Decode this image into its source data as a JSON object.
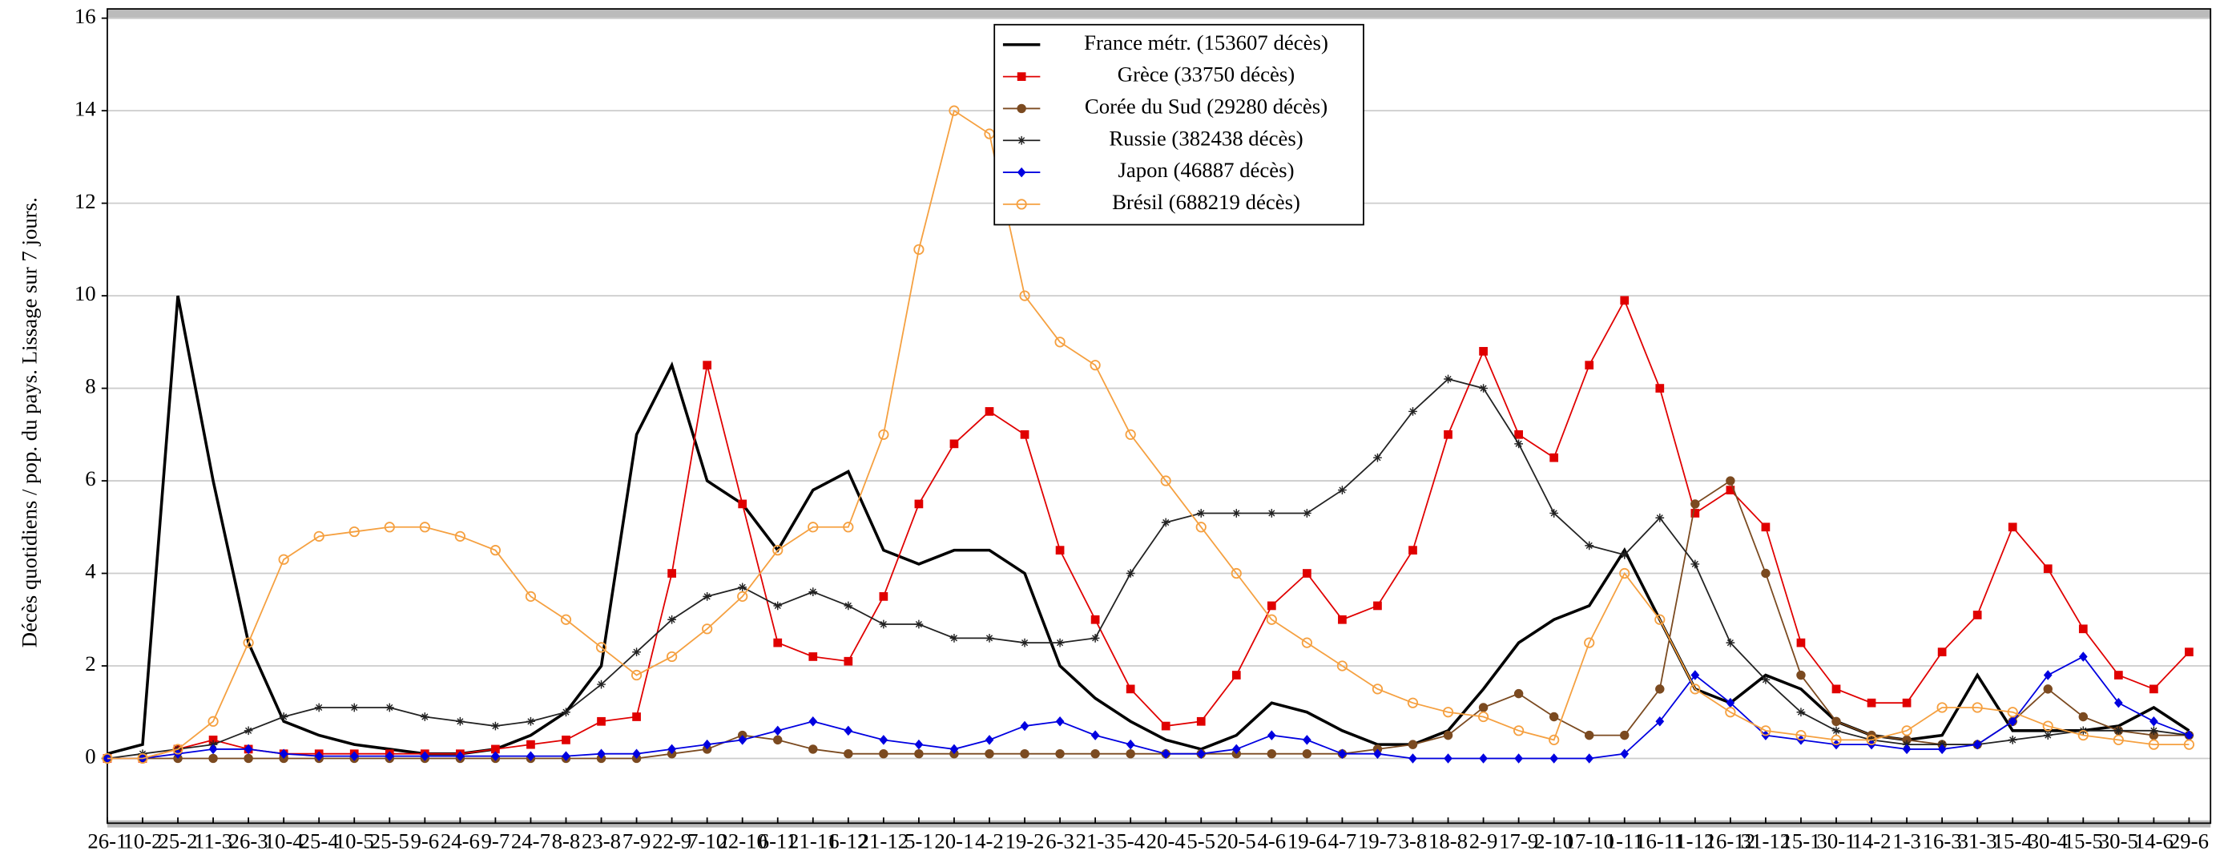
{
  "chart_data": {
    "type": "line",
    "ylabel": "Décès quotidiens / pop. du pays. Lissage sur 7 jours.",
    "categories": [
      "26-1",
      "10-2",
      "25-2",
      "11-3",
      "26-3",
      "10-4",
      "25-4",
      "10-5",
      "25-5",
      "9-6",
      "24-6",
      "9-7",
      "24-7",
      "8-8",
      "23-8",
      "7-9",
      "22-9",
      "7-10",
      "22-10",
      "6-11",
      "21-11",
      "6-12",
      "21-12",
      "5-1",
      "20-1",
      "4-2",
      "19-2",
      "6-3",
      "21-3",
      "5-4",
      "20-4",
      "5-5",
      "20-5",
      "4-6",
      "19-6",
      "4-7",
      "19-7",
      "3-8",
      "18-8",
      "2-9",
      "17-9",
      "2-10",
      "17-10",
      "1-11",
      "16-11",
      "1-12",
      "16-12",
      "31-12",
      "15-1",
      "30-1",
      "14-2",
      "1-3",
      "16-3",
      "31-3",
      "15-4",
      "30-4",
      "15-5",
      "30-5",
      "14-6",
      "29-6"
    ],
    "ylim": [
      -1.4,
      16.2
    ],
    "yticks": [
      0,
      2,
      4,
      6,
      8,
      10,
      12,
      14,
      16
    ],
    "grid": true,
    "legend": "top-center",
    "series": [
      {
        "name": "France métr. (153607 décès)",
        "color": "#000000",
        "marker": "none",
        "values": [
          0.1,
          0.3,
          10,
          6,
          2.5,
          0.8,
          0.5,
          0.3,
          0.2,
          0.1,
          0.1,
          0.2,
          0.5,
          1,
          2,
          7,
          8.5,
          6,
          5.5,
          4.5,
          5.8,
          6.2,
          4.5,
          4.2,
          4.5,
          4.5,
          4,
          2,
          1.3,
          0.8,
          0.4,
          0.2,
          0.5,
          1.2,
          1,
          0.6,
          0.3,
          0.3,
          0.6,
          1.5,
          2.5,
          3,
          3.3,
          4.5,
          3,
          1.5,
          1.2,
          1.8,
          1.5,
          0.8,
          0.5,
          0.4,
          0.5,
          1.8,
          0.6,
          0.6,
          0.6,
          0.7,
          1.1,
          0.6
        ]
      },
      {
        "name": "Grèce (33750 décès)",
        "color": "#e00000",
        "marker": "square",
        "values": [
          0,
          0,
          0.2,
          0.4,
          0.2,
          0.1,
          0.1,
          0.1,
          0.1,
          0.1,
          0.1,
          0.2,
          0.3,
          0.4,
          0.8,
          0.9,
          4,
          8.5,
          5.5,
          2.5,
          2.2,
          2.1,
          3.5,
          5.5,
          6.8,
          7.5,
          7,
          4.5,
          3,
          1.5,
          0.7,
          0.8,
          1.8,
          3.3,
          4,
          3,
          3.3,
          4.5,
          7,
          8.8,
          7,
          6.5,
          8.5,
          9.9,
          8,
          5.3,
          5.8,
          5,
          2.5,
          1.5,
          1.2,
          1.2,
          2.3,
          3.1,
          5,
          4.1,
          2.8,
          1.8,
          1.5,
          2.3
        ]
      },
      {
        "name": "Corée du Sud (29280 décès)",
        "color": "#7b4a20",
        "marker": "circle",
        "values": [
          0,
          0,
          0,
          0,
          0,
          0,
          0,
          0,
          0,
          0,
          0,
          0,
          0,
          0,
          0,
          0,
          0.1,
          0.2,
          0.5,
          0.4,
          0.2,
          0.1,
          0.1,
          0.1,
          0.1,
          0.1,
          0.1,
          0.1,
          0.1,
          0.1,
          0.1,
          0.1,
          0.1,
          0.1,
          0.1,
          0.1,
          0.2,
          0.3,
          0.5,
          1.1,
          1.4,
          0.9,
          0.5,
          0.5,
          1.5,
          5.5,
          6,
          4,
          1.8,
          0.8,
          0.5,
          0.4,
          0.3,
          0.3,
          0.8,
          1.5,
          0.9,
          0.6,
          0.5,
          0.5
        ]
      },
      {
        "name": "Russie (382438 décès)",
        "color": "#222222",
        "marker": "star",
        "values": [
          0,
          0.1,
          0.2,
          0.3,
          0.6,
          0.9,
          1.1,
          1.1,
          1.1,
          0.9,
          0.8,
          0.7,
          0.8,
          1,
          1.6,
          2.3,
          3,
          3.5,
          3.7,
          3.3,
          3.6,
          3.3,
          2.9,
          2.9,
          2.6,
          2.6,
          2.5,
          2.5,
          2.6,
          4,
          5.1,
          5.3,
          5.3,
          5.3,
          5.3,
          5.8,
          6.5,
          7.5,
          8.2,
          8,
          6.8,
          5.3,
          4.6,
          4.4,
          5.2,
          4.2,
          2.5,
          1.7,
          1,
          0.6,
          0.4,
          0.3,
          0.3,
          0.3,
          0.4,
          0.5,
          0.6,
          0.6,
          0.6,
          0.5
        ]
      },
      {
        "name": "Japon (46887 décès)",
        "color": "#0000e0",
        "marker": "diamond",
        "values": [
          0,
          0,
          0.1,
          0.2,
          0.2,
          0.1,
          0.05,
          0.05,
          0.05,
          0.05,
          0.05,
          0.05,
          0.05,
          0.05,
          0.1,
          0.1,
          0.2,
          0.3,
          0.4,
          0.6,
          0.8,
          0.6,
          0.4,
          0.3,
          0.2,
          0.4,
          0.7,
          0.8,
          0.5,
          0.3,
          0.1,
          0.1,
          0.2,
          0.5,
          0.4,
          0.1,
          0.1,
          0,
          0,
          0,
          0,
          0,
          0,
          0.1,
          0.8,
          1.8,
          1.2,
          0.5,
          0.4,
          0.3,
          0.3,
          0.2,
          0.2,
          0.3,
          0.8,
          1.8,
          2.2,
          1.2,
          0.8,
          0.5
        ]
      },
      {
        "name": "Brésil (688219 décès)",
        "color": "#f5a040",
        "marker": "ring",
        "values": [
          0,
          0,
          0.2,
          0.8,
          2.5,
          4.3,
          4.8,
          4.9,
          5,
          5,
          4.8,
          4.5,
          3.5,
          3,
          2.4,
          1.8,
          2.2,
          2.8,
          3.5,
          4.5,
          5,
          5,
          7,
          11,
          14,
          13.5,
          10,
          9,
          8.5,
          7,
          6,
          5,
          4,
          3,
          2.5,
          2,
          1.5,
          1.2,
          1,
          0.9,
          0.6,
          0.4,
          2.5,
          4,
          3,
          1.5,
          1,
          0.6,
          0.5,
          0.4,
          0.4,
          0.6,
          1.1,
          1.1,
          1,
          0.7,
          0.5,
          0.4,
          0.3,
          0.3
        ]
      }
    ]
  }
}
